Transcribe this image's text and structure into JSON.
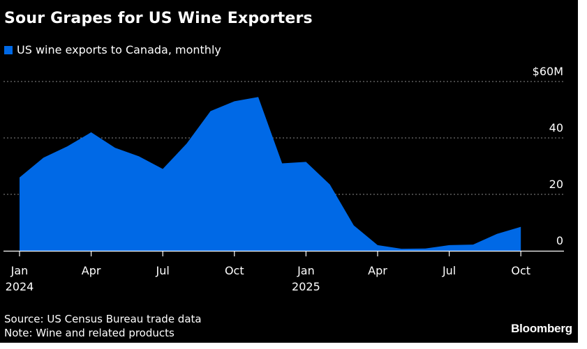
{
  "chart_data": {
    "type": "area",
    "title": "Sour Grapes for US Wine Exporters",
    "series": [
      {
        "name": "US wine exports to Canada, monthly",
        "color": "#0069e6",
        "x": [
          "2024-01",
          "2024-02",
          "2024-03",
          "2024-04",
          "2024-05",
          "2024-06",
          "2024-07",
          "2024-08",
          "2024-09",
          "2024-10",
          "2024-11",
          "2024-12",
          "2025-01",
          "2025-02",
          "2025-03",
          "2025-04",
          "2025-05",
          "2025-06",
          "2025-07",
          "2025-08",
          "2025-09",
          "2025-10"
        ],
        "values": [
          26,
          33,
          37,
          42,
          36.5,
          33.5,
          29,
          38,
          49.5,
          53,
          54.5,
          31,
          31.5,
          23.5,
          9,
          2,
          0.7,
          0.8,
          2,
          2.2,
          6,
          8.5
        ]
      }
    ],
    "xticks": [
      {
        "month": "2024-01",
        "label": "Jan",
        "year": "2024"
      },
      {
        "month": "2024-04",
        "label": "Apr",
        "year": ""
      },
      {
        "month": "2024-07",
        "label": "Jul",
        "year": ""
      },
      {
        "month": "2024-10",
        "label": "Oct",
        "year": ""
      },
      {
        "month": "2025-01",
        "label": "Jan",
        "year": "2025"
      },
      {
        "month": "2025-04",
        "label": "Apr",
        "year": ""
      },
      {
        "month": "2025-07",
        "label": "Jul",
        "year": ""
      },
      {
        "month": "2025-10",
        "label": "Oct",
        "year": ""
      }
    ],
    "yticks": [
      {
        "value": 0,
        "label": "0"
      },
      {
        "value": 20,
        "label": "20"
      },
      {
        "value": 40,
        "label": "40"
      },
      {
        "value": 60,
        "label": "$60M"
      }
    ],
    "ylim": [
      0,
      60
    ],
    "xlabel": "",
    "ylabel": "",
    "grid": true,
    "legend_position": "top-left"
  },
  "legend": {
    "label": "US wine exports to Canada, monthly"
  },
  "footer": {
    "source": "Source: US Census Bureau trade data",
    "note": "Note: Wine and related products",
    "logo": "Bloomberg"
  },
  "colors": {
    "background": "#000000",
    "text": "#ffffff",
    "accent": "#0069e6",
    "grid": "#8c8c8c"
  }
}
